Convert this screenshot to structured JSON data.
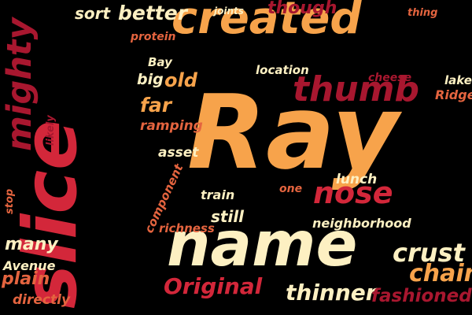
{
  "palette": {
    "background": "#000000",
    "orange": "#F7A34B",
    "cream": "#FDF0C2",
    "red": "#D3273A",
    "crimson": "#A8172F",
    "salmon": "#E4643F"
  },
  "words": [
    {
      "key": "ray",
      "text": "Ray",
      "color": "orange"
    },
    {
      "key": "slice",
      "text": "slice",
      "color": "red"
    },
    {
      "key": "name",
      "text": "name",
      "color": "cream"
    },
    {
      "key": "created",
      "text": "created",
      "color": "orange"
    },
    {
      "key": "mighty",
      "text": "mighty",
      "color": "crimson"
    },
    {
      "key": "thumb",
      "text": "thumb",
      "color": "crimson"
    },
    {
      "key": "nose",
      "text": "nose",
      "color": "red"
    },
    {
      "key": "crust",
      "text": "crust",
      "color": "cream"
    },
    {
      "key": "chain",
      "text": "chain",
      "color": "orange"
    },
    {
      "key": "original",
      "text": "Original",
      "color": "red"
    },
    {
      "key": "thinner",
      "text": "thinner",
      "color": "cream"
    },
    {
      "key": "fashioned",
      "text": "fashioned",
      "color": "crimson"
    },
    {
      "key": "better",
      "text": "better",
      "color": "cream"
    },
    {
      "key": "sort",
      "text": "sort",
      "color": "cream"
    },
    {
      "key": "though",
      "text": "though",
      "color": "crimson"
    },
    {
      "key": "big",
      "text": "big",
      "color": "cream"
    },
    {
      "key": "old",
      "text": "old",
      "color": "orange"
    },
    {
      "key": "far",
      "text": "far",
      "color": "orange"
    },
    {
      "key": "many",
      "text": "many",
      "color": "cream"
    },
    {
      "key": "plain",
      "text": "plain",
      "color": "salmon"
    },
    {
      "key": "still",
      "text": "still",
      "color": "cream"
    },
    {
      "key": "train",
      "text": "train",
      "color": "cream"
    },
    {
      "key": "lunch",
      "text": "lunch",
      "color": "cream"
    },
    {
      "key": "neighborhood",
      "text": "neighborhood",
      "color": "cream"
    },
    {
      "key": "protein",
      "text": "protein",
      "color": "salmon"
    },
    {
      "key": "joints",
      "text": "joints",
      "color": "cream"
    },
    {
      "key": "thing",
      "text": "thing",
      "color": "salmon"
    },
    {
      "key": "bay",
      "text": "Bay",
      "color": "cream"
    },
    {
      "key": "location",
      "text": "location",
      "color": "cream"
    },
    {
      "key": "cheese",
      "text": "cheese",
      "color": "crimson"
    },
    {
      "key": "lake",
      "text": "lake",
      "color": "cream"
    },
    {
      "key": "ridge",
      "text": "Ridge",
      "color": "salmon"
    },
    {
      "key": "likely",
      "text": "likely",
      "color": "crimson"
    },
    {
      "key": "ramping",
      "text": "ramping",
      "color": "salmon"
    },
    {
      "key": "asset",
      "text": "asset",
      "color": "cream"
    },
    {
      "key": "component",
      "text": "component",
      "color": "salmon"
    },
    {
      "key": "stop",
      "text": "stop",
      "color": "salmon"
    },
    {
      "key": "one",
      "text": "one",
      "color": "salmon"
    },
    {
      "key": "richness",
      "text": "richness",
      "color": "salmon"
    },
    {
      "key": "avenue",
      "text": "Avenue",
      "color": "cream"
    },
    {
      "key": "directly",
      "text": "directly",
      "color": "salmon"
    }
  ]
}
